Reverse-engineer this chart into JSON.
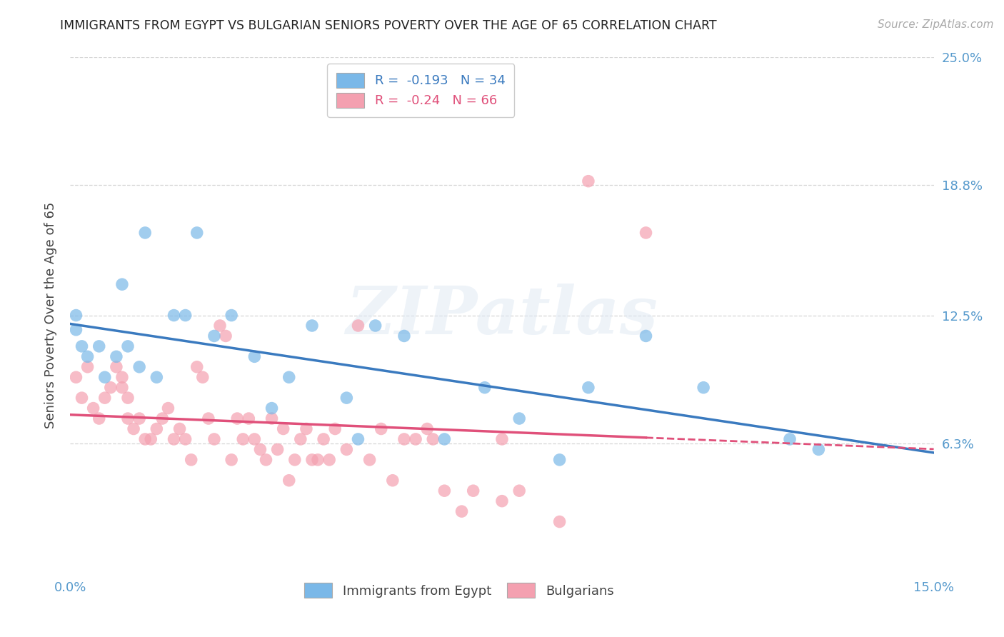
{
  "title": "IMMIGRANTS FROM EGYPT VS BULGARIAN SENIORS POVERTY OVER THE AGE OF 65 CORRELATION CHART",
  "source": "Source: ZipAtlas.com",
  "ylabel": "Seniors Poverty Over the Age of 65",
  "xlim": [
    0.0,
    0.15
  ],
  "ylim": [
    0.0,
    0.25
  ],
  "ytick_vals": [
    0.063,
    0.125,
    0.188,
    0.25
  ],
  "ytick_labels": [
    "6.3%",
    "12.5%",
    "18.8%",
    "25.0%"
  ],
  "xtick_vals": [
    0.0,
    0.025,
    0.05,
    0.075,
    0.1,
    0.125,
    0.15
  ],
  "xtick_labels": [
    "0.0%",
    "",
    "",
    "",
    "",
    "",
    "15.0%"
  ],
  "egypt_color": "#7ab8e8",
  "bulgaria_color": "#f4a0b0",
  "egypt_line_color": "#3a7abf",
  "bulgaria_line_color": "#e0507a",
  "egypt_R": -0.193,
  "egypt_N": 34,
  "bulgaria_R": -0.24,
  "bulgaria_N": 66,
  "egypt_scatter_x": [
    0.001,
    0.001,
    0.002,
    0.003,
    0.005,
    0.006,
    0.008,
    0.009,
    0.01,
    0.012,
    0.013,
    0.015,
    0.018,
    0.02,
    0.022,
    0.025,
    0.028,
    0.032,
    0.035,
    0.038,
    0.042,
    0.048,
    0.05,
    0.053,
    0.058,
    0.065,
    0.072,
    0.078,
    0.085,
    0.09,
    0.1,
    0.11,
    0.125,
    0.13
  ],
  "egypt_scatter_y": [
    0.125,
    0.118,
    0.11,
    0.105,
    0.11,
    0.095,
    0.105,
    0.14,
    0.11,
    0.1,
    0.165,
    0.095,
    0.125,
    0.125,
    0.165,
    0.115,
    0.125,
    0.105,
    0.08,
    0.095,
    0.12,
    0.085,
    0.065,
    0.12,
    0.115,
    0.065,
    0.09,
    0.075,
    0.055,
    0.09,
    0.115,
    0.09,
    0.065,
    0.06
  ],
  "bulgaria_scatter_x": [
    0.001,
    0.002,
    0.003,
    0.004,
    0.005,
    0.006,
    0.007,
    0.008,
    0.009,
    0.009,
    0.01,
    0.01,
    0.011,
    0.012,
    0.013,
    0.014,
    0.015,
    0.016,
    0.017,
    0.018,
    0.019,
    0.02,
    0.021,
    0.022,
    0.023,
    0.024,
    0.025,
    0.026,
    0.027,
    0.028,
    0.029,
    0.03,
    0.031,
    0.032,
    0.033,
    0.034,
    0.035,
    0.036,
    0.037,
    0.038,
    0.039,
    0.04,
    0.041,
    0.042,
    0.043,
    0.044,
    0.045,
    0.046,
    0.048,
    0.05,
    0.052,
    0.054,
    0.056,
    0.058,
    0.06,
    0.062,
    0.063,
    0.065,
    0.068,
    0.07,
    0.075,
    0.075,
    0.078,
    0.085,
    0.09,
    0.1
  ],
  "bulgaria_scatter_y": [
    0.095,
    0.085,
    0.1,
    0.08,
    0.075,
    0.085,
    0.09,
    0.1,
    0.095,
    0.09,
    0.085,
    0.075,
    0.07,
    0.075,
    0.065,
    0.065,
    0.07,
    0.075,
    0.08,
    0.065,
    0.07,
    0.065,
    0.055,
    0.1,
    0.095,
    0.075,
    0.065,
    0.12,
    0.115,
    0.055,
    0.075,
    0.065,
    0.075,
    0.065,
    0.06,
    0.055,
    0.075,
    0.06,
    0.07,
    0.045,
    0.055,
    0.065,
    0.07,
    0.055,
    0.055,
    0.065,
    0.055,
    0.07,
    0.06,
    0.12,
    0.055,
    0.07,
    0.045,
    0.065,
    0.065,
    0.07,
    0.065,
    0.04,
    0.03,
    0.04,
    0.065,
    0.035,
    0.04,
    0.025,
    0.19,
    0.165
  ],
  "watermark_text": "ZIPatlas",
  "background_color": "#ffffff",
  "grid_color": "#cccccc"
}
